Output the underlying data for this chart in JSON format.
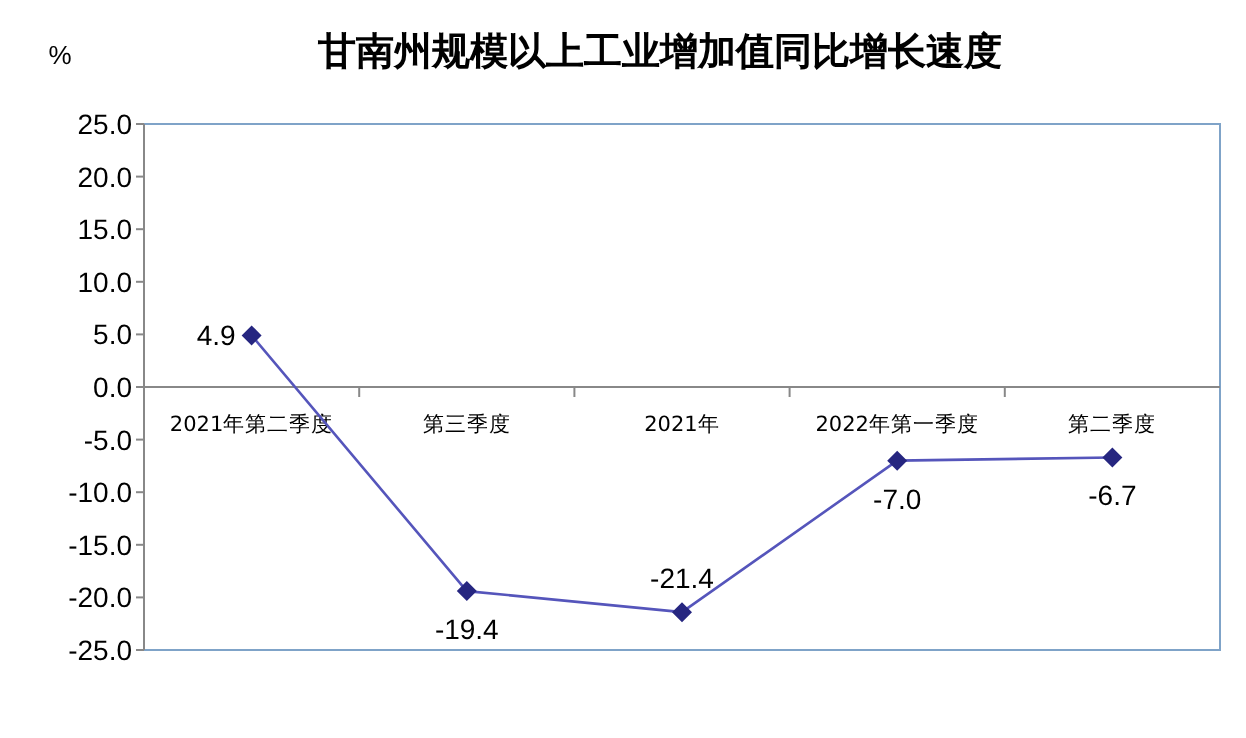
{
  "chart_data": {
    "type": "line",
    "title": "甘南州规模以上工业增加值同比增长速度",
    "ylabel": "%",
    "categories": [
      "2021年第二季度",
      "第三季度",
      "2021年",
      "2022年第一季度",
      "第二季度"
    ],
    "values": [
      4.9,
      -19.4,
      -21.4,
      -7.0,
      -6.7
    ],
    "value_labels": [
      "4.9",
      "-19.4",
      "-21.4",
      "-7.0",
      "-6.7"
    ],
    "color": "#262680",
    "marker": "diamond",
    "line_style": "solid",
    "grid": false,
    "ylim": [
      -25,
      25
    ],
    "yticks": [
      {
        "value": -25,
        "label": "-25.0"
      },
      {
        "value": -20,
        "label": "-20.0"
      },
      {
        "value": -15,
        "label": "-15.0"
      },
      {
        "value": -10,
        "label": "-10.0"
      },
      {
        "value": -5,
        "label": "-5.0"
      },
      {
        "value": 0,
        "label": "0.0"
      },
      {
        "value": 5,
        "label": "5.0"
      },
      {
        "value": 10,
        "label": "10.0"
      },
      {
        "value": 15,
        "label": "15.0"
      },
      {
        "value": 20,
        "label": "20.0"
      },
      {
        "value": 25,
        "label": "25.0"
      }
    ]
  }
}
